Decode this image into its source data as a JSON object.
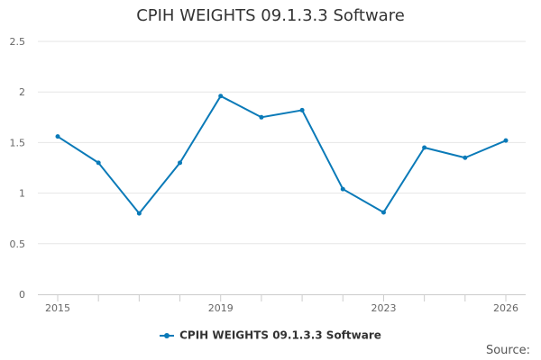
{
  "chart_data": {
    "type": "line",
    "title": "CPIH WEIGHTS 09.1.3.3 Software",
    "xlabel": "",
    "ylabel": "",
    "x_tick_labels": [
      "2015",
      "2019",
      "2023",
      "2026"
    ],
    "y_tick_labels": [
      "0",
      "0.5",
      "1",
      "1.5",
      "2",
      "2.5"
    ],
    "x": [
      2015,
      2016,
      2017,
      2018,
      2019,
      2020,
      2021,
      2022,
      2023,
      2024,
      2025,
      2026
    ],
    "series": [
      {
        "name": "CPIH WEIGHTS 09.1.3.3 Software",
        "color": "#0a7ab8",
        "values": [
          1.56,
          1.3,
          0.8,
          1.3,
          1.96,
          1.75,
          1.82,
          1.04,
          0.81,
          1.45,
          1.35,
          1.52
        ]
      }
    ],
    "xlim": [
      2015,
      2026
    ],
    "ylim": [
      0,
      2.5
    ],
    "grid": true,
    "legend_position": "bottom"
  },
  "source_label": "Source:"
}
